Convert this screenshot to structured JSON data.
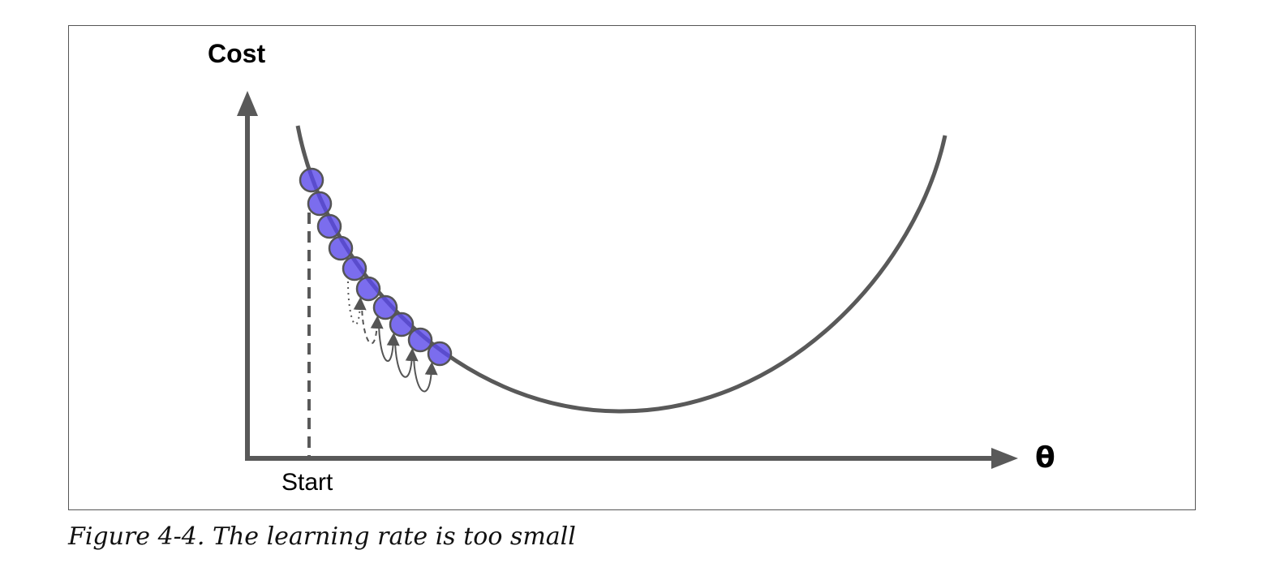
{
  "figure": {
    "y_axis_label": "Cost",
    "x_axis_label": "θ",
    "start_label": "Start",
    "caption": "Figure 4-4. The learning rate is too small",
    "step_count": 10,
    "colors": {
      "curve": "#595959",
      "step_fill": "#5a48ea",
      "step_stroke": "#555555"
    }
  }
}
